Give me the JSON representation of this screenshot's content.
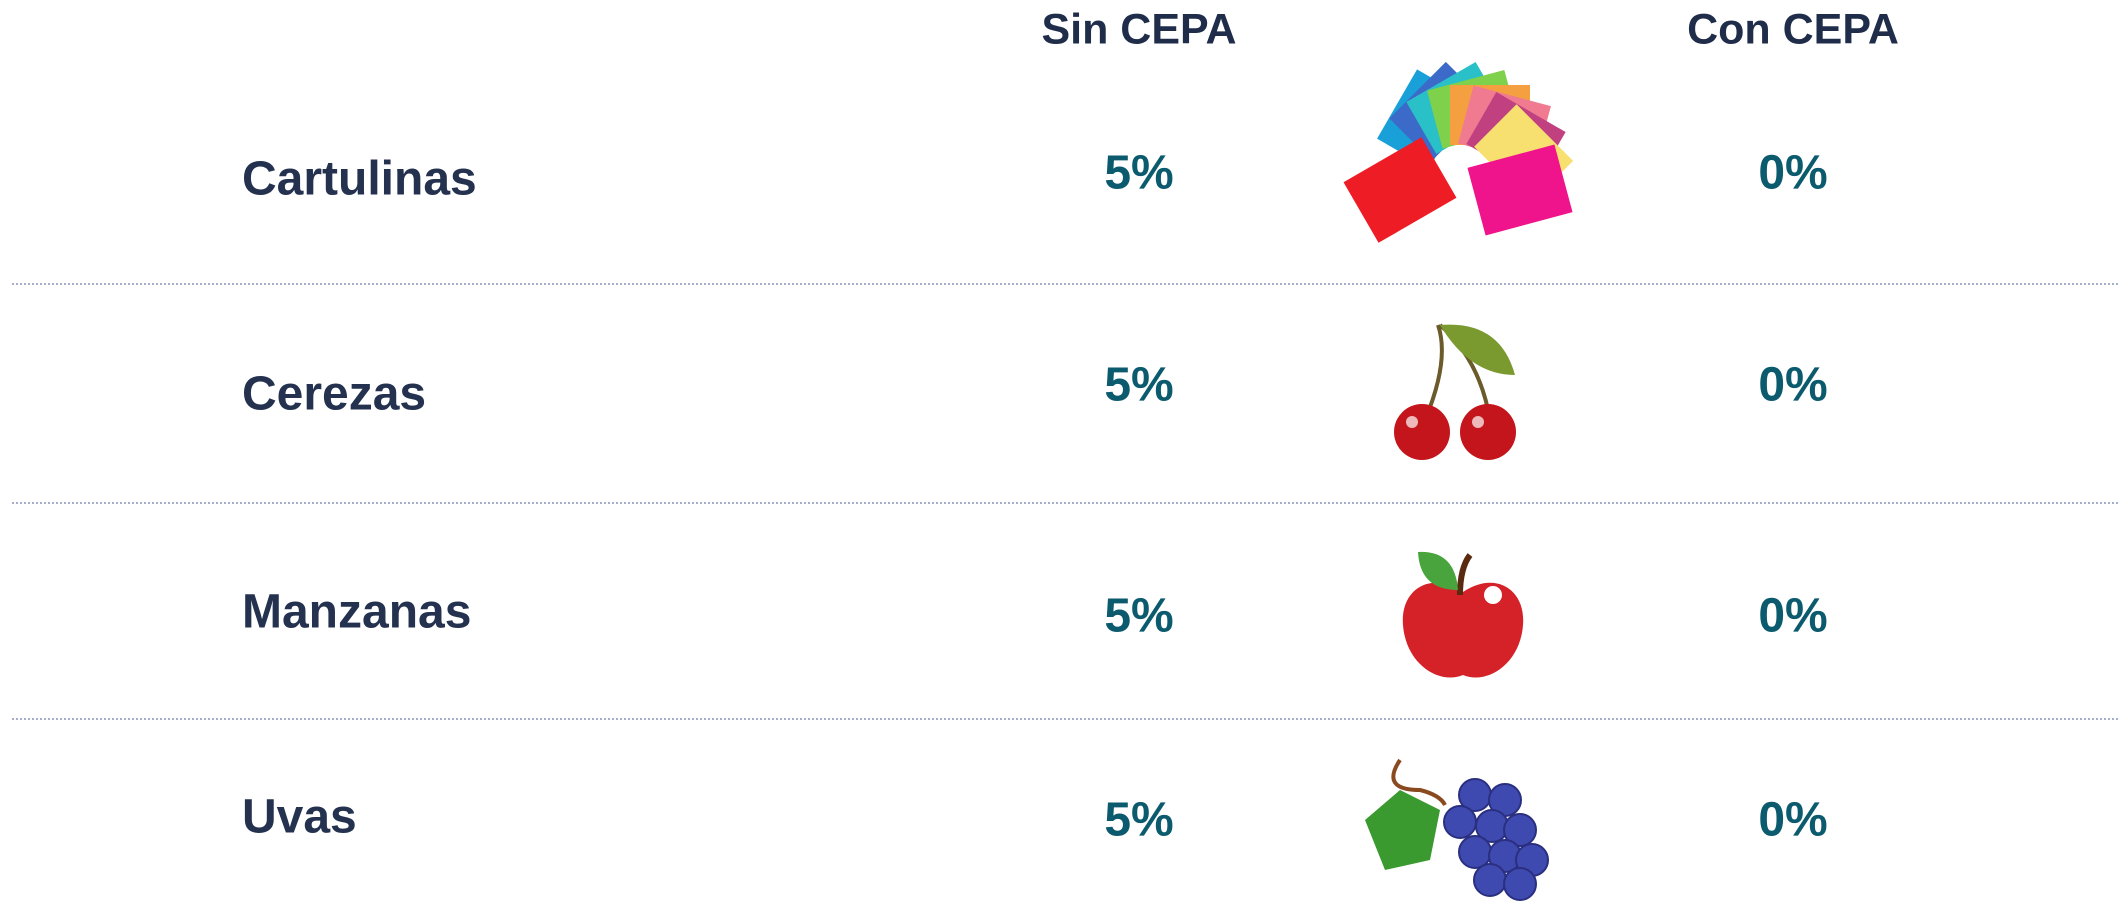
{
  "table": {
    "header": [
      "Sin CEPA",
      "Con CEPA"
    ],
    "rows": [
      [
        "Cartulinas",
        "5%",
        "0%"
      ],
      [
        "Cerezas",
        "5%",
        "0%"
      ],
      [
        "Manzanas",
        "5%",
        "0%"
      ],
      [
        "Uvas",
        "5%",
        "0%"
      ]
    ]
  }
}
